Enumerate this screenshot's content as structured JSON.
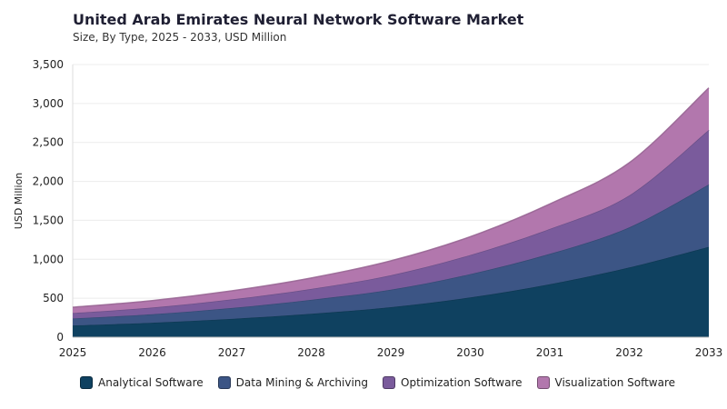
{
  "title": "United Arab Emirates Neural Network Software Market",
  "subtitle": "Size, By Type, 2025 - 2033, USD Million",
  "chart_data": {
    "type": "area",
    "stacked": true,
    "x": [
      2025,
      2026,
      2027,
      2028,
      2029,
      2030,
      2031,
      2032,
      2033
    ],
    "x_tick_labels": [
      "2025",
      "2026",
      "2027",
      "2028",
      "2029",
      "2030",
      "2031",
      "2032",
      "2033"
    ],
    "ylabel": "USD Million",
    "ylim": [
      0,
      3500
    ],
    "y_ticks": [
      0,
      500,
      1000,
      1500,
      2000,
      2500,
      3000,
      3500
    ],
    "y_tick_labels": [
      "0",
      "500",
      "1,000",
      "1,500",
      "2,000",
      "2,500",
      "3,000",
      "3,500"
    ],
    "grid": true,
    "legend_position": "bottom",
    "series": [
      {
        "name": "Analytical Software",
        "color": "#0f4160",
        "values": [
          150,
          185,
          235,
          300,
          385,
          510,
          680,
          895,
          1160
        ]
      },
      {
        "name": "Data Mining & Archiving",
        "color": "#3c5585",
        "values": [
          90,
          110,
          140,
          180,
          225,
          300,
          390,
          515,
          800
        ]
      },
      {
        "name": "Optimization Software",
        "color": "#7a5b9c",
        "values": [
          70,
          85,
          110,
          140,
          185,
          245,
          320,
          410,
          700
        ]
      },
      {
        "name": "Visualization Software",
        "color": "#b277ad",
        "values": [
          75,
          90,
          110,
          140,
          185,
          235,
          320,
          420,
          540
        ]
      }
    ]
  }
}
